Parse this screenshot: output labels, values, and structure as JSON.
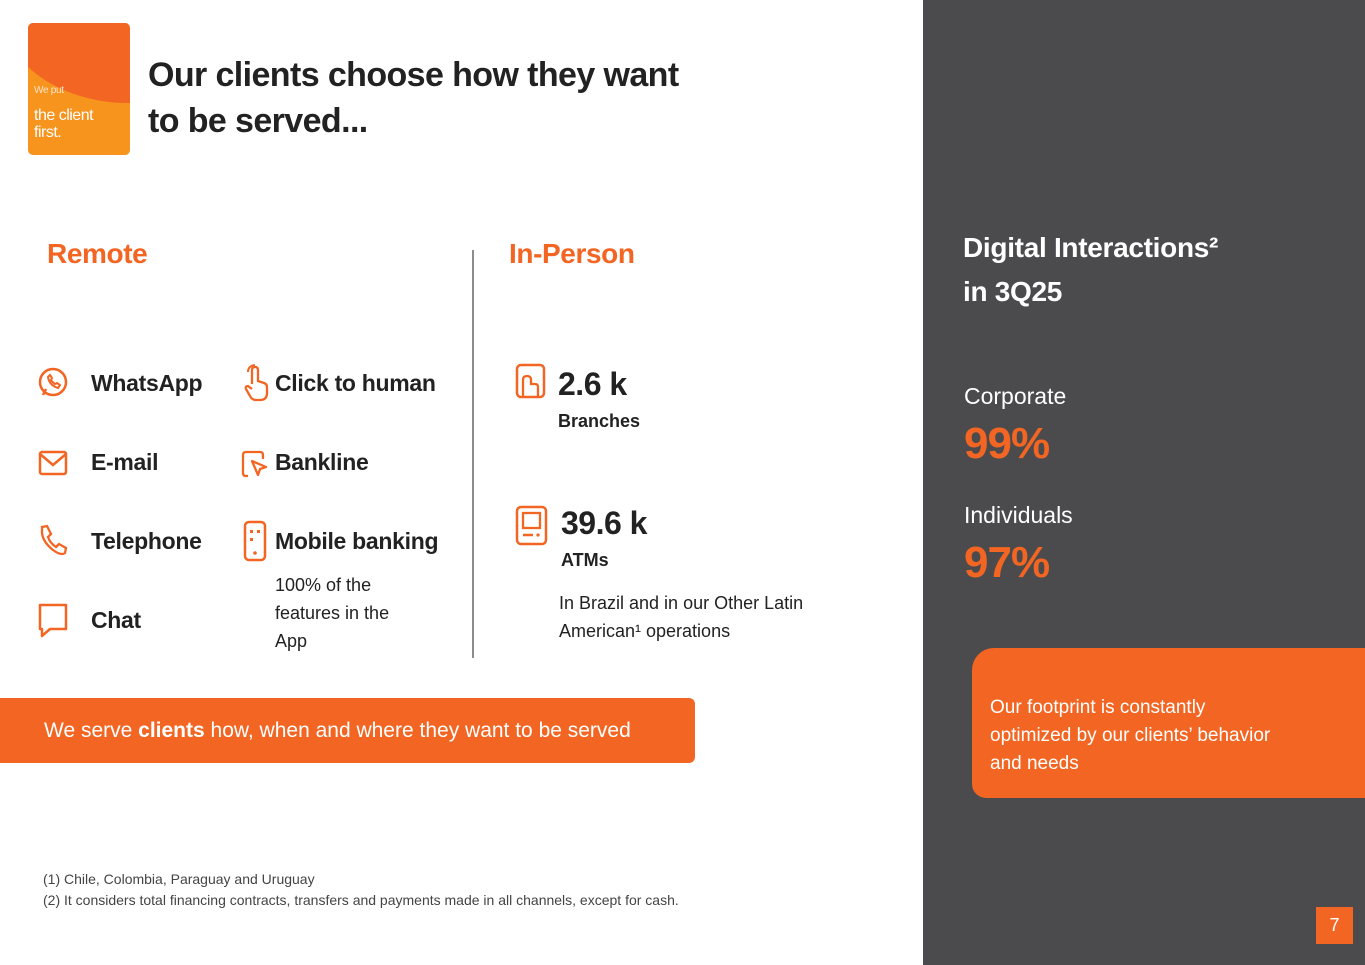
{
  "logo": {
    "line1": "We put",
    "line2": "the client",
    "line3": "first."
  },
  "title": "Our clients choose how they want to be served...",
  "remote": {
    "heading": "Remote",
    "channels": [
      {
        "label": "WhatsApp",
        "icon": "whatsapp-icon"
      },
      {
        "label": "E-mail",
        "icon": "mail-icon"
      },
      {
        "label": "Telephone",
        "icon": "phone-icon"
      },
      {
        "label": "Chat",
        "icon": "chat-icon"
      }
    ],
    "channels2": [
      {
        "label": "Click to human",
        "icon": "hand-pointer-icon"
      },
      {
        "label": "Bankline",
        "icon": "cursor-click-icon"
      },
      {
        "label": "Mobile banking",
        "icon": "mobile-icon"
      }
    ],
    "mobile_note": "100% of the features in the App"
  },
  "in_person": {
    "heading": "In-Person",
    "branches_value": "2.6 k",
    "branches_label": "Branches",
    "atms_value": "39.6 k",
    "atms_label": "ATMs",
    "note": "In Brazil and in our Other Latin American¹ operations"
  },
  "banner": {
    "prefix": "We serve ",
    "bold": "clients",
    "suffix": " how, when and where they want to be served"
  },
  "footnotes": [
    "(1) Chile, Colombia, Paraguay and Uruguay",
    "(2) It considers total financing contracts, transfers and payments made in all channels, except for cash."
  ],
  "panel": {
    "heading_line1": "Digital Interactions²",
    "heading_line2": "in 3Q25",
    "corporate_label": "Corporate",
    "corporate_value": "99%",
    "individuals_label": "Individuals",
    "individuals_value": "97%",
    "callout": "Our  footprint is constantly optimized by our clients’ behavior and needs"
  },
  "page_number": "7",
  "colors": {
    "accent": "#f26522",
    "panel": "#4b4b4d",
    "logo_light": "#f7941d"
  }
}
